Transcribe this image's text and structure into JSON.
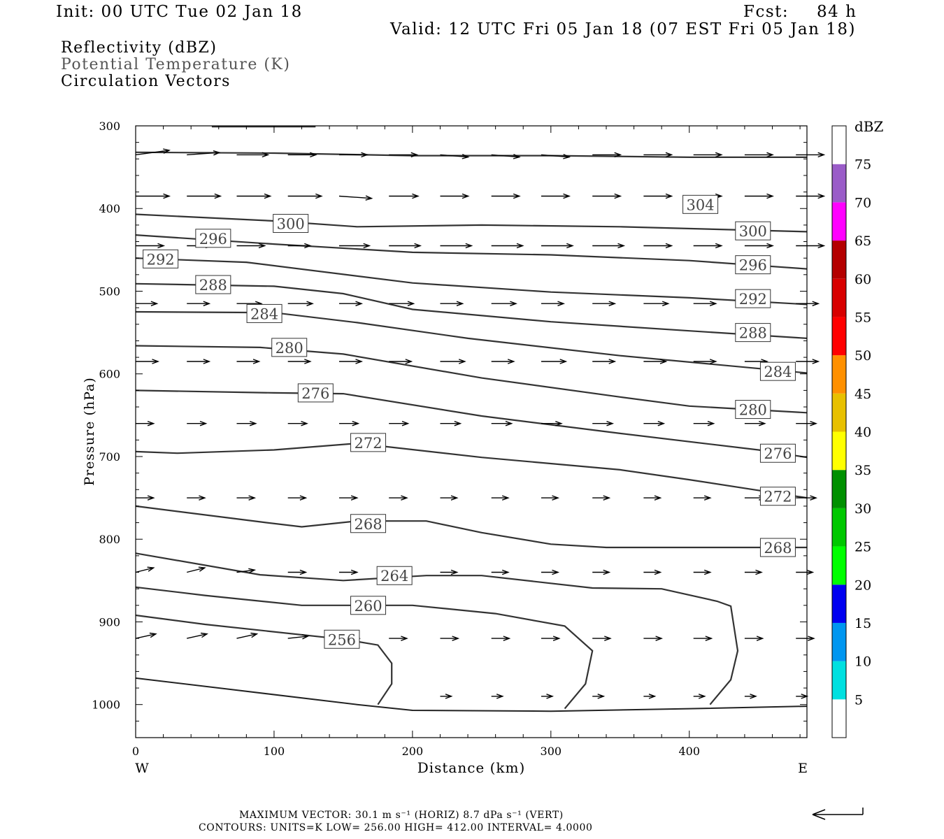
{
  "header": {
    "init": "Init: 00 UTC Tue 02 Jan 18",
    "fcst_label": "Fcst:",
    "fcst_value": "84 h",
    "valid": "Valid: 12 UTC Fri 05 Jan 18 (07 EST Fri 05 Jan 18)"
  },
  "legend": {
    "reflectivity": "Reflectivity (dBZ)",
    "theta": "Potential Temperature (K)",
    "circulation": "Circulation Vectors"
  },
  "footer": {
    "max_vector": "MAXIMUM VECTOR:  30.1 m s⁻¹ (HORIZ)          8.7 dPa s⁻¹ (VERT)",
    "contours": "CONTOURS:  UNITS=K  LOW=  256.00        HIGH=  412.00        INTERVAL=    4.0000"
  },
  "chart_data": {
    "type": "line",
    "xlabel": "Distance (km)",
    "ylabel": "Pressure (hPa)",
    "xlim": [
      0,
      485
    ],
    "ylim": [
      1040,
      300
    ],
    "x_ticks": [
      0,
      100,
      200,
      300,
      400
    ],
    "y_ticks": [
      300,
      400,
      500,
      600,
      700,
      800,
      900,
      1000
    ],
    "x_end_left": "W",
    "x_end_right": "E",
    "colorbar": {
      "title": "dBZ",
      "levels": [
        5,
        10,
        15,
        20,
        25,
        30,
        35,
        40,
        45,
        50,
        55,
        60,
        65,
        70,
        75
      ],
      "colors": [
        "#ffffff",
        "#00e0e0",
        "#0096f0",
        "#0000f0",
        "#00ff00",
        "#00c800",
        "#009000",
        "#ffff00",
        "#e8c000",
        "#ff9000",
        "#ff0000",
        "#d80000",
        "#b40000",
        "#ff00ff",
        "#9a5cc8",
        "#ffffff"
      ]
    },
    "contours": [
      {
        "label": "304",
        "points": [
          [
            0,
            332
          ],
          [
            100,
            333
          ],
          [
            200,
            336
          ],
          [
            300,
            336
          ],
          [
            400,
            338
          ],
          [
            485,
            338
          ]
        ],
        "label_at": [
          [
            408,
            395
          ]
        ]
      },
      {
        "label": "300",
        "points": [
          [
            0,
            407
          ],
          [
            100,
            415
          ],
          [
            160,
            422
          ],
          [
            250,
            420
          ],
          [
            350,
            422
          ],
          [
            485,
            428
          ]
        ],
        "label_at": [
          [
            112,
            418
          ],
          [
            446,
            427
          ]
        ]
      },
      {
        "label": "296",
        "points": [
          [
            0,
            432
          ],
          [
            100,
            443
          ],
          [
            200,
            453
          ],
          [
            300,
            456
          ],
          [
            400,
            463
          ],
          [
            485,
            473
          ]
        ],
        "label_at": [
          [
            56,
            436
          ],
          [
            446,
            468
          ]
        ]
      },
      {
        "label": "292",
        "points": [
          [
            0,
            460
          ],
          [
            80,
            465
          ],
          [
            200,
            490
          ],
          [
            300,
            501
          ],
          [
            400,
            508
          ],
          [
            485,
            516
          ]
        ],
        "label_at": [
          [
            18,
            461
          ],
          [
            446,
            509
          ]
        ]
      },
      {
        "label": "288",
        "points": [
          [
            0,
            491
          ],
          [
            100,
            494
          ],
          [
            150,
            503
          ],
          [
            200,
            522
          ],
          [
            300,
            537
          ],
          [
            400,
            548
          ],
          [
            485,
            557
          ]
        ],
        "label_at": [
          [
            56,
            492
          ],
          [
            446,
            550
          ]
        ]
      },
      {
        "label": "284",
        "points": [
          [
            0,
            525
          ],
          [
            100,
            526
          ],
          [
            160,
            538
          ],
          [
            240,
            557
          ],
          [
            350,
            578
          ],
          [
            485,
            599
          ]
        ],
        "label_at": [
          [
            93,
            527
          ],
          [
            464,
            597
          ]
        ]
      },
      {
        "label": "280",
        "points": [
          [
            0,
            566
          ],
          [
            90,
            568
          ],
          [
            150,
            576
          ],
          [
            250,
            605
          ],
          [
            350,
            628
          ],
          [
            400,
            639
          ],
          [
            485,
            647
          ]
        ],
        "label_at": [
          [
            111,
            568
          ],
          [
            446,
            643
          ]
        ]
      },
      {
        "label": "276",
        "points": [
          [
            0,
            620
          ],
          [
            100,
            623
          ],
          [
            150,
            624
          ],
          [
            250,
            651
          ],
          [
            350,
            672
          ],
          [
            450,
            692
          ],
          [
            485,
            701
          ]
        ],
        "label_at": [
          [
            130,
            623
          ],
          [
            464,
            696
          ]
        ]
      },
      {
        "label": "272",
        "points": [
          [
            0,
            694
          ],
          [
            30,
            696
          ],
          [
            100,
            692
          ],
          [
            160,
            684
          ],
          [
            250,
            701
          ],
          [
            350,
            716
          ],
          [
            400,
            728
          ],
          [
            485,
            750
          ]
        ],
        "label_at": [
          [
            168,
            683
          ],
          [
            464,
            748
          ]
        ]
      },
      {
        "label": "268",
        "points": [
          [
            0,
            760
          ],
          [
            90,
            779
          ],
          [
            120,
            785
          ],
          [
            160,
            778
          ],
          [
            210,
            778
          ],
          [
            250,
            792
          ],
          [
            300,
            806
          ],
          [
            340,
            810
          ],
          [
            485,
            810
          ]
        ],
        "label_at": [
          [
            168,
            781
          ],
          [
            464,
            810
          ]
        ]
      },
      {
        "label": "264",
        "points": [
          [
            0,
            817
          ],
          [
            90,
            843
          ],
          [
            150,
            850
          ],
          [
            210,
            844
          ],
          [
            250,
            844
          ],
          [
            330,
            859
          ],
          [
            380,
            860
          ],
          [
            420,
            875
          ],
          [
            430,
            881
          ],
          [
            435,
            935
          ],
          [
            430,
            970
          ],
          [
            415,
            1000
          ]
        ],
        "label_at": [
          [
            187,
            844
          ]
        ]
      },
      {
        "label": "260",
        "points": [
          [
            0,
            858
          ],
          [
            50,
            868
          ],
          [
            120,
            880
          ],
          [
            200,
            880
          ],
          [
            260,
            890
          ],
          [
            310,
            905
          ],
          [
            330,
            935
          ],
          [
            325,
            975
          ],
          [
            310,
            1005
          ]
        ],
        "label_at": [
          [
            168,
            880
          ]
        ]
      },
      {
        "label": "256",
        "points": [
          [
            0,
            892
          ],
          [
            50,
            903
          ],
          [
            150,
            921
          ],
          [
            175,
            928
          ],
          [
            185,
            950
          ],
          [
            185,
            975
          ],
          [
            175,
            1000
          ]
        ],
        "label_at": [
          [
            149,
            921
          ]
        ]
      }
    ],
    "surface": {
      "points": [
        [
          0,
          968
        ],
        [
          70,
          982
        ],
        [
          160,
          1000
        ],
        [
          200,
          1007
        ],
        [
          300,
          1008
        ],
        [
          400,
          1005
        ],
        [
          485,
          1002
        ]
      ]
    },
    "top_partial_contour": {
      "points": [
        [
          55,
          301
        ],
        [
          130,
          301
        ]
      ]
    },
    "vectors": {
      "rows": [
        {
          "p": 335,
          "xs": [
            0,
            37,
            73,
            110,
            147,
            183,
            220,
            257,
            293,
            330,
            367,
            403,
            440,
            477
          ],
          "u": [
            30,
            29,
            28,
            25,
            25,
            25,
            25,
            25,
            25,
            25,
            25,
            25,
            25,
            25
          ],
          "w": [
            -2,
            -1,
            0,
            0,
            0,
            0,
            1,
            1,
            1,
            0,
            0,
            0,
            0,
            0
          ]
        },
        {
          "p": 385,
          "xs": [
            0,
            37,
            73,
            110,
            147,
            183,
            220,
            257,
            293,
            330,
            367,
            403,
            440,
            477
          ],
          "u": [
            30,
            30,
            30,
            30,
            29,
            26,
            25,
            25,
            25,
            25,
            25,
            25,
            25,
            25
          ],
          "w": [
            0,
            0,
            0,
            0,
            1,
            0,
            0,
            0,
            0,
            0,
            0,
            0,
            0,
            0
          ]
        },
        {
          "p": 445,
          "xs": [
            0,
            37,
            73,
            110,
            147,
            183,
            220,
            257,
            293,
            330,
            367,
            403,
            440,
            477
          ],
          "u": [
            25,
            22,
            25,
            20,
            27,
            28,
            28,
            28,
            28,
            28,
            25,
            25,
            25,
            25
          ],
          "w": [
            0,
            0,
            0,
            0,
            0,
            0,
            0,
            0,
            0,
            0,
            0,
            0,
            0,
            0
          ]
        },
        {
          "p": 515,
          "xs": [
            0,
            37,
            73,
            110,
            147,
            183,
            220,
            257,
            293,
            330,
            367,
            403,
            440,
            477
          ],
          "u": [
            19,
            20,
            22,
            22,
            20,
            22,
            20,
            22,
            20,
            20,
            22,
            20,
            20,
            20
          ],
          "w": [
            0,
            0,
            0,
            0,
            0,
            0,
            0,
            0,
            0,
            0,
            0,
            0,
            0,
            0
          ]
        },
        {
          "p": 585,
          "xs": [
            0,
            37,
            73,
            110,
            147,
            183,
            220,
            257,
            293,
            330,
            367,
            403,
            440,
            477
          ],
          "u": [
            20,
            20,
            20,
            20,
            20,
            20,
            22,
            20,
            22,
            20,
            20,
            20,
            20,
            20
          ],
          "w": [
            0,
            0,
            0,
            0,
            0,
            0,
            0,
            0,
            0,
            0,
            0,
            0,
            0,
            0
          ]
        },
        {
          "p": 660,
          "xs": [
            0,
            37,
            73,
            110,
            147,
            183,
            220,
            257,
            293,
            330,
            367,
            403,
            440,
            477
          ],
          "u": [
            16,
            17,
            17,
            17,
            17,
            17,
            18,
            18,
            18,
            18,
            18,
            18,
            18,
            18
          ],
          "w": [
            0,
            0,
            0,
            0,
            0,
            0,
            0,
            0,
            0,
            0,
            0,
            0,
            0,
            0
          ]
        },
        {
          "p": 750,
          "xs": [
            0,
            37,
            73,
            110,
            147,
            183,
            220,
            257,
            293,
            330,
            367,
            403,
            440,
            477
          ],
          "u": [
            16,
            16,
            16,
            16,
            16,
            16,
            15,
            15,
            15,
            15,
            15,
            15,
            18,
            18
          ],
          "w": [
            0,
            0,
            0,
            0,
            0,
            0,
            0,
            0,
            0,
            0,
            0,
            0,
            0,
            0
          ]
        },
        {
          "p": 840,
          "xs": [
            0,
            37,
            73,
            110,
            147,
            183,
            220,
            257,
            293,
            330,
            367,
            403,
            440,
            477
          ],
          "u": [
            16,
            16,
            16,
            16,
            16,
            16,
            15,
            15,
            15,
            15,
            15,
            15,
            15,
            15
          ],
          "w": [
            -2,
            -2,
            -1,
            0,
            0,
            0,
            0,
            0,
            0,
            0,
            0,
            0,
            0,
            0
          ]
        },
        {
          "p": 920,
          "xs": [
            0,
            37,
            73,
            110,
            147,
            183,
            220,
            257,
            293,
            330,
            367,
            403,
            440,
            477
          ],
          "u": [
            18,
            18,
            18,
            18,
            18,
            16,
            16,
            16,
            16,
            16,
            16,
            16,
            16,
            16
          ],
          "w": [
            -2,
            -2,
            -2,
            -1,
            0,
            0,
            0,
            0,
            0,
            0,
            0,
            0,
            0,
            0
          ]
        },
        {
          "p": 990,
          "xs": [
            0,
            37,
            73,
            110,
            147,
            183,
            220,
            257,
            293,
            330,
            367,
            403,
            440,
            477
          ],
          "u": [
            0,
            0,
            0,
            0,
            0,
            0,
            10,
            10,
            10,
            10,
            10,
            10,
            10,
            10
          ],
          "w": [
            0,
            0,
            0,
            0,
            0,
            0,
            0,
            0,
            0,
            0,
            0,
            0,
            0,
            0
          ]
        }
      ]
    }
  }
}
